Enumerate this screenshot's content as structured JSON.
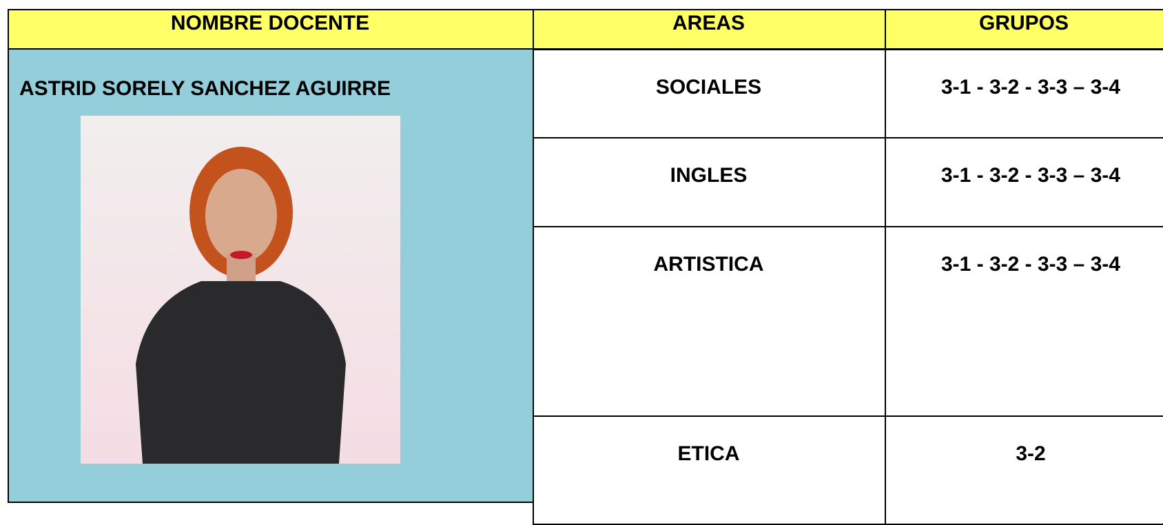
{
  "header": {
    "columns": [
      "NOMBRE DOCENTE",
      "AREAS",
      "GRUPOS"
    ]
  },
  "teacher": {
    "name": "ASTRID SORELY SANCHEZ AGUIRRE"
  },
  "rows": [
    {
      "area": "SOCIALES",
      "groups": "3-1 - 3-2 - 3-3 – 3-4"
    },
    {
      "area": "INGLES",
      "groups": "3-1 - 3-2 - 3-3 – 3-4"
    },
    {
      "area": "ARTISTICA",
      "groups": "3-1 - 3-2 - 3-3 – 3-4"
    },
    {
      "area": "ETICA",
      "groups": "3-2"
    }
  ]
}
